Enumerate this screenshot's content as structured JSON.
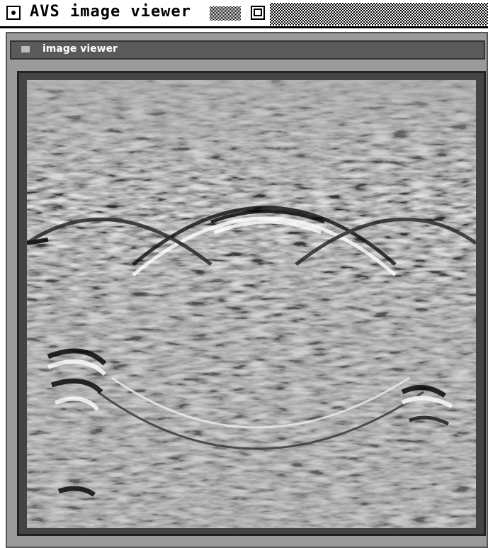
{
  "window": {
    "title": "AVS image viewer"
  },
  "panel": {
    "title": "image viewer"
  }
}
